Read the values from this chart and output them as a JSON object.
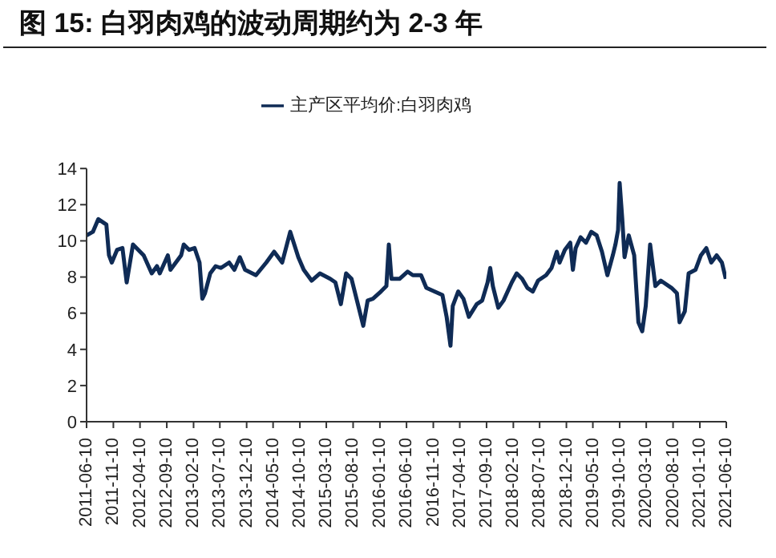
{
  "chart_data": {
    "type": "line",
    "title": "图 15:  白羽肉鸡的波动周期约为 2-3 年",
    "legend": "top",
    "grid": false,
    "marker": "none",
    "line_style": "solid",
    "xlim": [
      "2011-06-10",
      "2021-06-10"
    ],
    "xticks": [
      "2011-06-10",
      "2011-11-10",
      "2012-04-10",
      "2012-09-10",
      "2013-02-10",
      "2013-07-10",
      "2013-12-10",
      "2014-05-10",
      "2014-10-10",
      "2015-03-10",
      "2015-08-10",
      "2016-01-10",
      "2016-06-10",
      "2016-11-10",
      "2017-04-10",
      "2017-09-10",
      "2018-02-10",
      "2018-07-10",
      "2018-12-10",
      "2019-05-10",
      "2019-10-10",
      "2020-03-10",
      "2020-08-10",
      "2021-01-10",
      "2021-06-10"
    ],
    "ylim": [
      0,
      14
    ],
    "yticks": [
      0,
      2,
      4,
      6,
      8,
      10,
      12,
      14
    ],
    "x": [
      "2011-06-10",
      "2011-07-16",
      "2011-08-16",
      "2011-10-01",
      "2011-10-16",
      "2011-11-01",
      "2011-12-01",
      "2012-01-01",
      "2012-01-25",
      "2012-03-01",
      "2012-05-01",
      "2012-06-16",
      "2012-07-16",
      "2012-08-01",
      "2012-09-16",
      "2012-10-01",
      "2012-12-01",
      "2012-12-16",
      "2013-01-16",
      "2013-02-16",
      "2013-03-16",
      "2013-04-01",
      "2013-04-16",
      "2013-05-16",
      "2013-06-16",
      "2013-07-16",
      "2013-09-01",
      "2013-10-01",
      "2013-11-01",
      "2013-12-01",
      "2014-02-01",
      "2014-04-01",
      "2014-05-16",
      "2014-07-01",
      "2014-08-16",
      "2014-10-01",
      "2014-11-01",
      "2014-12-16",
      "2015-02-01",
      "2015-04-01",
      "2015-05-01",
      "2015-06-01",
      "2015-07-01",
      "2015-08-01",
      "2015-09-01",
      "2015-10-07",
      "2015-11-01",
      "2015-12-01",
      "2016-01-16",
      "2016-02-16",
      "2016-03-01",
      "2016-03-16",
      "2016-05-01",
      "2016-06-16",
      "2016-07-16",
      "2016-09-01",
      "2016-10-01",
      "2016-11-16",
      "2017-01-01",
      "2017-01-25",
      "2017-02-16",
      "2017-03-01",
      "2017-04-01",
      "2017-05-01",
      "2017-06-01",
      "2017-07-16",
      "2017-08-16",
      "2017-09-16",
      "2017-10-01",
      "2017-10-16",
      "2017-11-16",
      "2017-12-16",
      "2018-02-01",
      "2018-03-01",
      "2018-04-01",
      "2018-05-01",
      "2018-06-01",
      "2018-07-01",
      "2018-08-16",
      "2018-09-16",
      "2018-10-16",
      "2018-11-01",
      "2018-12-01",
      "2019-01-01",
      "2019-01-16",
      "2019-02-01",
      "2019-03-01",
      "2019-04-01",
      "2019-05-01",
      "2019-06-01",
      "2019-07-01",
      "2019-08-01",
      "2019-09-01",
      "2019-09-16",
      "2019-10-01",
      "2019-10-10",
      "2019-10-25",
      "2019-11-07",
      "2019-12-01",
      "2020-01-01",
      "2020-01-25",
      "2020-02-16",
      "2020-03-07",
      "2020-04-01",
      "2020-05-01",
      "2020-06-01",
      "2020-08-01",
      "2020-09-01",
      "2020-09-16",
      "2020-10-16",
      "2020-11-07",
      "2020-12-16",
      "2021-01-16",
      "2021-02-16",
      "2021-03-16",
      "2021-04-16",
      "2021-05-16",
      "2021-06-07"
    ],
    "series": [
      {
        "name": "主产区平均价:白羽肉鸡",
        "color": "#0f2b55",
        "values": [
          10.3,
          10.5,
          11.2,
          10.9,
          9.2,
          8.8,
          9.5,
          9.6,
          7.7,
          9.8,
          9.2,
          8.2,
          8.6,
          8.2,
          9.2,
          8.4,
          9.2,
          9.8,
          9.5,
          9.6,
          8.8,
          6.8,
          7.1,
          8.2,
          8.6,
          8.5,
          8.8,
          8.4,
          9.1,
          8.4,
          8.1,
          8.8,
          9.4,
          8.8,
          10.5,
          9.1,
          8.4,
          7.8,
          8.2,
          7.9,
          7.7,
          6.5,
          8.2,
          7.9,
          6.7,
          5.3,
          6.7,
          6.8,
          7.2,
          7.5,
          9.8,
          7.9,
          7.9,
          8.3,
          8.1,
          8.1,
          7.4,
          7.2,
          7.0,
          5.8,
          4.2,
          6.4,
          7.2,
          6.8,
          5.8,
          6.5,
          6.7,
          7.7,
          8.5,
          7.5,
          6.3,
          6.7,
          7.7,
          8.2,
          7.9,
          7.4,
          7.2,
          7.8,
          8.1,
          8.5,
          9.4,
          8.8,
          9.5,
          9.9,
          8.4,
          9.6,
          10.2,
          9.9,
          10.5,
          10.3,
          9.4,
          8.1,
          9.2,
          9.8,
          10.6,
          13.2,
          11.2,
          9.1,
          10.3,
          9.2,
          5.5,
          5.0,
          6.4,
          9.8,
          7.5,
          7.8,
          7.4,
          7.1,
          5.5,
          6.1,
          8.2,
          8.4,
          9.2,
          9.6,
          8.8,
          9.2,
          8.8,
          7.9
        ]
      }
    ]
  }
}
